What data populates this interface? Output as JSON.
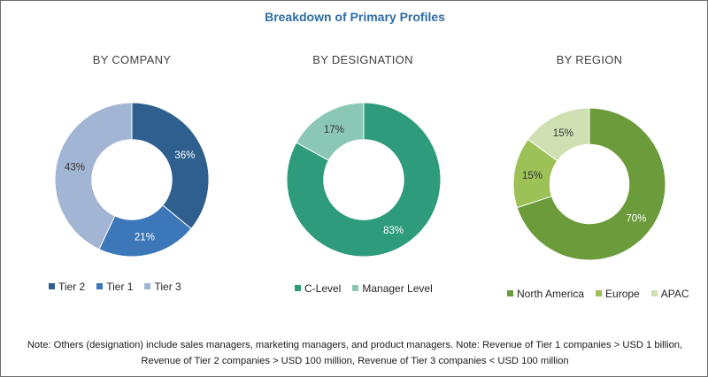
{
  "title": "Breakdown of Primary Profiles",
  "note": "Note: Others (designation) include sales managers, marketing managers, and product managers. Note: Revenue of Tier 1 companies > USD 1 billion, Revenue of Tier 2 companies > USD 100 million, Revenue of Tier 3 companies < USD 100 million",
  "chart_data": [
    {
      "type": "pie",
      "subtitle": "BY COMPANY",
      "slices": [
        {
          "label": "Tier 2",
          "value": 36,
          "text": "36%",
          "color": "#2e5f8f"
        },
        {
          "label": "Tier 1",
          "value": 21,
          "text": "21%",
          "color": "#3c77b9"
        },
        {
          "label": "Tier 3",
          "value": 43,
          "text": "43%",
          "color": "#a3b5d4"
        }
      ],
      "legend_position": "bottom"
    },
    {
      "type": "pie",
      "subtitle": "BY DESIGNATION",
      "slices": [
        {
          "label": "C-Level",
          "value": 83,
          "text": "83%",
          "color": "#2e9b7c"
        },
        {
          "label": "Manager Level",
          "value": 17,
          "text": "17%",
          "color": "#8ac7b6"
        }
      ],
      "legend_position": "bottom"
    },
    {
      "type": "pie",
      "subtitle": "BY REGION",
      "slices": [
        {
          "label": "North America",
          "value": 70,
          "text": "70%",
          "color": "#6b9b3a"
        },
        {
          "label": "Europe",
          "value": 15,
          "text": "15%",
          "color": "#9bc157"
        },
        {
          "label": "APAC",
          "value": 15,
          "text": "15%",
          "color": "#cfe0b2"
        }
      ],
      "legend_position": "bottom"
    }
  ]
}
